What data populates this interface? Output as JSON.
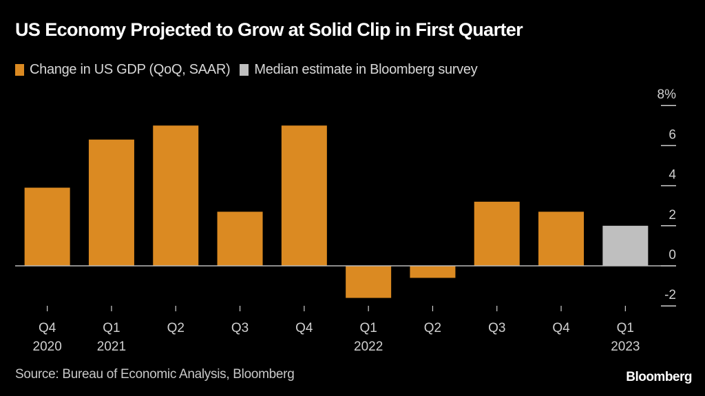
{
  "title": "US Economy Projected to Grow at Solid Clip in First Quarter",
  "legend": [
    {
      "label": "Change in US GDP (QoQ, SAAR)",
      "color": "#db8a22"
    },
    {
      "label": "Median estimate in Bloomberg survey",
      "color": "#bfbfbf"
    }
  ],
  "source": "Source: Bureau of Economic Analysis, Bloomberg",
  "logo": "Bloomberg",
  "chart_data": {
    "type": "bar",
    "title": "US Economy Projected to Grow at Solid Clip in First Quarter",
    "xlabel": "",
    "ylabel": "",
    "categories": [
      "Q4 2020",
      "Q1 2021",
      "Q2 2021",
      "Q3 2021",
      "Q4 2021",
      "Q1 2022",
      "Q2 2022",
      "Q3 2022",
      "Q4 2022",
      "Q1 2023"
    ],
    "x_tick_labels": [
      {
        "quarter": "Q4",
        "year": "2020"
      },
      {
        "quarter": "Q1",
        "year": "2021"
      },
      {
        "quarter": "Q2",
        "year": ""
      },
      {
        "quarter": "Q3",
        "year": ""
      },
      {
        "quarter": "Q4",
        "year": ""
      },
      {
        "quarter": "Q1",
        "year": "2022"
      },
      {
        "quarter": "Q2",
        "year": ""
      },
      {
        "quarter": "Q3",
        "year": ""
      },
      {
        "quarter": "Q4",
        "year": ""
      },
      {
        "quarter": "Q1",
        "year": "2023"
      }
    ],
    "series": [
      {
        "name": "Change in US GDP (QoQ, SAAR)",
        "color": "#db8a22",
        "values": [
          3.9,
          6.3,
          7.0,
          2.7,
          7.0,
          -1.6,
          -0.6,
          3.2,
          2.7,
          null
        ]
      },
      {
        "name": "Median estimate in Bloomberg survey",
        "color": "#bfbfbf",
        "values": [
          null,
          null,
          null,
          null,
          null,
          null,
          null,
          null,
          null,
          2.0
        ]
      }
    ],
    "ylim": [
      -2,
      8
    ],
    "y_ticks": [
      8,
      6,
      4,
      2,
      0,
      -2
    ],
    "y_tick_labels": [
      "8%",
      "6",
      "4",
      "2",
      "0",
      "-2"
    ],
    "y_axis_position": "right",
    "grid": false,
    "legend_position": "top-left"
  }
}
